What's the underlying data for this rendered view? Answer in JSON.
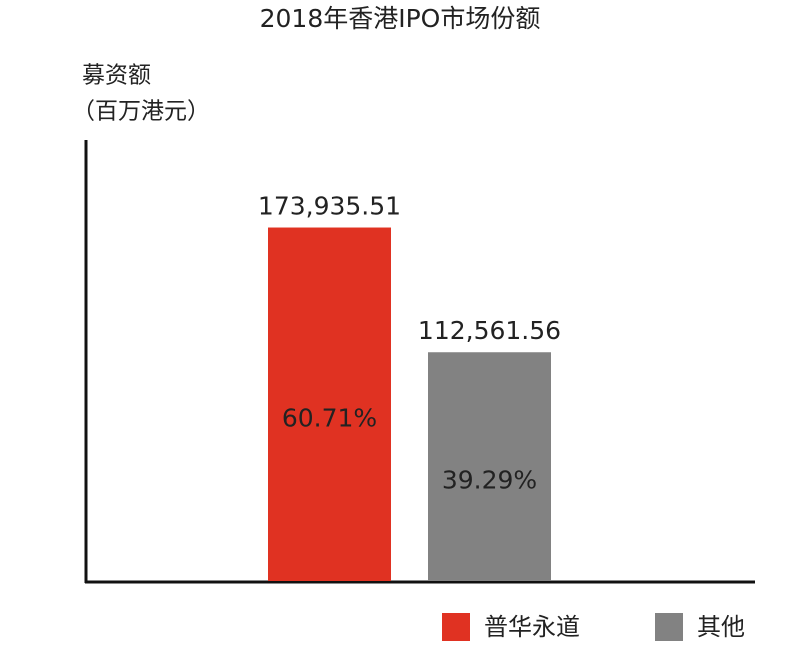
{
  "chart_data": {
    "type": "bar",
    "title": "2018年香港IPO市场份额",
    "y_label_lines": [
      "募资额",
      "（百万港元）"
    ],
    "categories": [
      null,
      null
    ],
    "series": [
      {
        "name": "普华永道",
        "color": "#e03222",
        "values": [
          173935.51,
          null
        ],
        "value_labels": [
          "173,935.51",
          null
        ],
        "shares": [
          60.71,
          null
        ],
        "share_labels": [
          "60.71%",
          null
        ]
      },
      {
        "name": "其他",
        "color": "#828282",
        "values": [
          null,
          112561.56
        ],
        "value_labels": [
          null,
          "112,561.56"
        ],
        "shares": [
          null,
          39.29
        ],
        "share_labels": [
          null,
          "39.29%"
        ]
      }
    ],
    "ylim": [
      0,
      217000
    ]
  }
}
